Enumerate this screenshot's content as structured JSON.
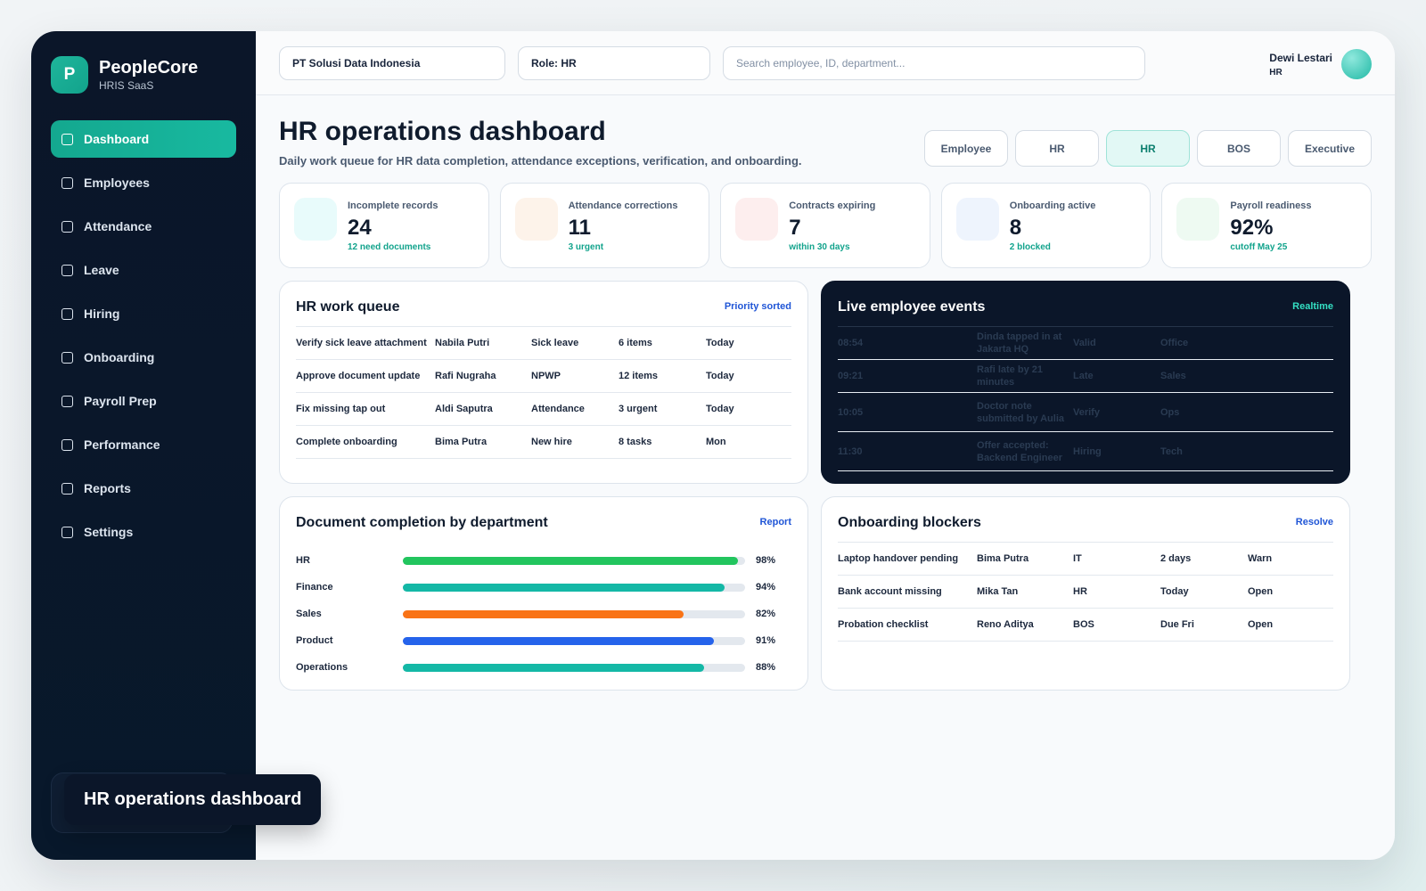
{
  "brand": {
    "logo": "P",
    "name": "PeopleCore",
    "sub": "HRIS SaaS"
  },
  "nav": [
    {
      "label": "Dashboard",
      "active": true
    },
    {
      "label": "Employees"
    },
    {
      "label": "Attendance"
    },
    {
      "label": "Leave"
    },
    {
      "label": "Hiring"
    },
    {
      "label": "Onboarding"
    },
    {
      "label": "Payroll Prep"
    },
    {
      "label": "Performance"
    },
    {
      "label": "Reports"
    },
    {
      "label": "Settings"
    }
  ],
  "toast": "HR operations dashboard",
  "topbar": {
    "company": "PT Solusi Data Indonesia",
    "role": "Role: HR",
    "search_placeholder": "Search employee, ID, department...",
    "user_name": "Dewi Lestari",
    "user_role": "HR"
  },
  "page": {
    "title": "HR operations dashboard",
    "subtitle": "Daily work queue for HR data completion, attendance exceptions, verification, and onboarding."
  },
  "role_tabs": [
    {
      "label": "Employee"
    },
    {
      "label": "HR"
    },
    {
      "label": "HR",
      "active": true
    },
    {
      "label": "BOS"
    },
    {
      "label": "Executive"
    }
  ],
  "kpis": [
    {
      "label": "Incomplete records",
      "value": "24",
      "note": "12 need documents",
      "color": "#e8fbfb"
    },
    {
      "label": "Attendance corrections",
      "value": "11",
      "note": "3 urgent",
      "color": "#fdf3ea"
    },
    {
      "label": "Contracts expiring",
      "value": "7",
      "note": "within 30 days",
      "color": "#fdeeee"
    },
    {
      "label": "Onboarding active",
      "value": "8",
      "note": "2 blocked",
      "color": "#eef4fd"
    },
    {
      "label": "Payroll readiness",
      "value": "92%",
      "note": "cutoff May 25",
      "color": "#eefaf2"
    }
  ],
  "work_queue": {
    "title": "HR work queue",
    "link": "Priority sorted",
    "rows": [
      [
        "Verify sick leave attachment",
        "Nabila Putri",
        "Sick leave",
        "6 items",
        "Today"
      ],
      [
        "Approve document update",
        "Rafi Nugraha",
        "NPWP",
        "12 items",
        "Today"
      ],
      [
        "Fix missing tap out",
        "Aldi Saputra",
        "Attendance",
        "3 urgent",
        "Today"
      ],
      [
        "Complete onboarding",
        "Bima Putra",
        "New hire",
        "8 tasks",
        "Mon"
      ]
    ]
  },
  "live_events": {
    "title": "Live employee events",
    "link": "Realtime",
    "rows": [
      [
        "08:54",
        "Dinda tapped in at Jakarta HQ",
        "Valid",
        "Office"
      ],
      [
        "09:21",
        "Rafi late by 21 minutes",
        "Late",
        "Sales"
      ],
      [
        "10:05",
        "Doctor note submitted by Aulia",
        "Verify",
        "Ops"
      ],
      [
        "11:30",
        "Offer accepted: Backend Engineer",
        "Hiring",
        "Tech"
      ]
    ]
  },
  "doc_completion": {
    "title": "Document completion by department",
    "link": "Report",
    "rows": [
      {
        "label": "HR",
        "value": 98,
        "display": "98%",
        "color": "#22c55e"
      },
      {
        "label": "Finance",
        "value": 94,
        "display": "94%",
        "color": "#14b8a6"
      },
      {
        "label": "Sales",
        "value": 82,
        "display": "82%",
        "color": "#f97316"
      },
      {
        "label": "Product",
        "value": 91,
        "display": "91%",
        "color": "#2563eb"
      },
      {
        "label": "Operations",
        "value": 88,
        "display": "88%",
        "color": "#14b8a6"
      }
    ]
  },
  "onboarding_blockers": {
    "title": "Onboarding blockers",
    "link": "Resolve",
    "rows": [
      [
        "Laptop handover pending",
        "Bima Putra",
        "IT",
        "2 days",
        "Warn"
      ],
      [
        "Bank account missing",
        "Mika Tan",
        "HR",
        "Today",
        "Open"
      ],
      [
        "Probation checklist",
        "Reno Aditya",
        "BOS",
        "Due Fri",
        "Open"
      ]
    ]
  }
}
